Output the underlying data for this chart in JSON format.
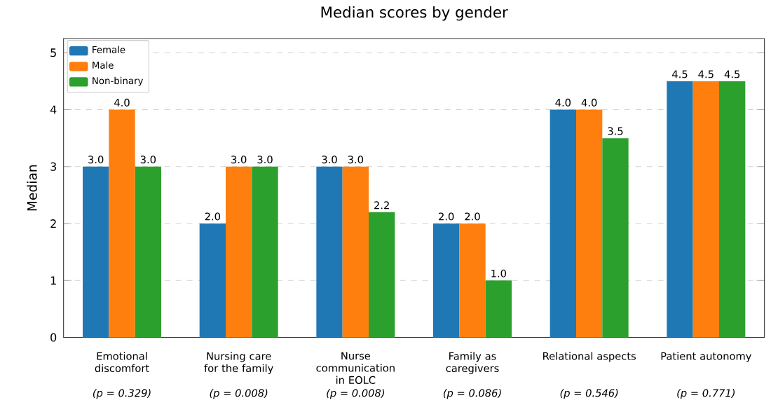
{
  "chart_data": {
    "type": "bar",
    "title": "Median scores by gender",
    "ylabel": "Median",
    "categories": [
      "Emotional discomfort",
      "Nursing care for the family",
      "Nurse communication in EOLC",
      "Family as caregivers",
      "Relational aspects",
      "Patient autonomy"
    ],
    "series": [
      {
        "name": "Female",
        "color": "#1f77b4",
        "values": [
          3.0,
          2.0,
          3.0,
          2.0,
          4.0,
          4.5
        ],
        "value_labels": [
          "3.0",
          "2.0",
          "3.0",
          "2.0",
          "4.0",
          "4.5"
        ]
      },
      {
        "name": "Male",
        "color": "#ff7f0e",
        "values": [
          4.0,
          3.0,
          3.0,
          2.0,
          4.0,
          4.5
        ],
        "value_labels": [
          "4.0",
          "3.0",
          "3.0",
          "2.0",
          "4.0",
          "4.5"
        ]
      },
      {
        "name": "Non-binary",
        "color": "#2ca02c",
        "values": [
          3.0,
          3.0,
          2.2,
          1.0,
          3.5,
          4.5
        ],
        "value_labels": [
          "3.0",
          "3.0",
          "2.2",
          "1.0",
          "3.5",
          "4.5"
        ]
      }
    ],
    "ylim": [
      0,
      5.25
    ],
    "yticks": [
      0,
      1,
      2,
      3,
      4,
      5
    ],
    "grid": "y",
    "legend": "top left",
    "annotations": [
      "(p = 0.329)",
      "(p = 0.008)",
      "(p = 0.008)",
      "(p = 0.086)",
      "(p = 0.546)",
      "(p = 0.771)"
    ]
  }
}
